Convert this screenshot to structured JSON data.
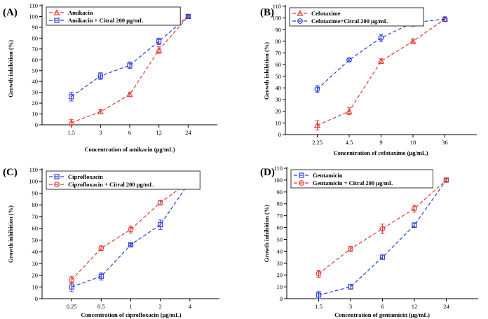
{
  "figure": {
    "colors": {
      "red": "#e03c31",
      "blue": "#2e3fd6",
      "axis": "#000000"
    },
    "ylabel": "Growth inhibition (%)"
  },
  "chart_data": [
    {
      "panel": "(A)",
      "type": "line",
      "categories": [
        "1.5",
        "3",
        "6",
        "12",
        "24"
      ],
      "xlabel": "Concentration of amikacin (μg/mL)",
      "ylabel": "Growth inhibition (%)",
      "ylim": [
        0,
        110
      ],
      "yticks": [
        0,
        10,
        20,
        30,
        40,
        50,
        60,
        70,
        80,
        90,
        100,
        110
      ],
      "legend_position": "top-left",
      "series": [
        {
          "name": "Amikacin",
          "color": "red",
          "marker": "triangle",
          "values": [
            2,
            12,
            28,
            69,
            100
          ],
          "errors": [
            3,
            2,
            2,
            3,
            1
          ]
        },
        {
          "name": "Amikacin + Citral 200 μg/mL",
          "color": "blue",
          "marker": "square",
          "values": [
            26,
            45,
            55,
            77,
            100
          ],
          "errors": [
            4,
            3,
            3,
            3,
            1
          ]
        }
      ]
    },
    {
      "panel": "(B)",
      "type": "line",
      "categories": [
        "2.25",
        "4.5",
        "9",
        "18",
        "36"
      ],
      "xlabel": "Concentration of cefotaxime (μg/mL)",
      "ylabel": "Growth inhibition (%)",
      "ylim": [
        0,
        110
      ],
      "yticks": [
        0,
        10,
        20,
        30,
        40,
        50,
        60,
        70,
        80,
        90,
        100,
        110
      ],
      "legend_position": "top-left",
      "series": [
        {
          "name": "Cefotaxime",
          "color": "red",
          "marker": "triangle",
          "values": [
            8,
            20,
            63,
            80,
            99
          ],
          "errors": [
            4,
            3,
            2,
            2,
            2
          ]
        },
        {
          "name": "Cefotaxime+Citral 200 μg/mL",
          "color": "blue",
          "marker": "circle",
          "values": [
            39,
            64,
            83,
            96,
            99
          ],
          "errors": [
            3,
            1,
            3,
            3,
            2
          ]
        }
      ]
    },
    {
      "panel": "(C)",
      "type": "line",
      "categories": [
        "0.25",
        "0.5",
        "1",
        "2",
        "4"
      ],
      "xlabel": "Concentration of ciprofloxacin (μg/mL)",
      "ylabel": "Growth inhibition (%)",
      "ylim": [
        0,
        110
      ],
      "yticks": [
        0,
        10,
        20,
        30,
        40,
        50,
        60,
        70,
        80,
        90,
        100,
        110
      ],
      "legend_position": "top-left",
      "series": [
        {
          "name": "Ciprofloxacin",
          "color": "blue",
          "marker": "square",
          "values": [
            10,
            19,
            46,
            63,
            100
          ],
          "errors": [
            4,
            3,
            1,
            4,
            1
          ]
        },
        {
          "name": "Ciprofloxacin + Citral 200 μg/mL",
          "color": "red",
          "marker": "circle",
          "values": [
            16,
            43,
            59,
            82,
            100
          ],
          "errors": [
            3,
            2,
            3,
            2,
            1
          ]
        }
      ]
    },
    {
      "panel": "(D)",
      "type": "line",
      "categories": [
        "1.5",
        "3",
        "6",
        "12",
        "24"
      ],
      "xlabel": "Concentration of gentamicin (μg/mL)",
      "ylabel": "Growth inhibition (%)",
      "ylim": [
        0,
        110
      ],
      "yticks": [
        0,
        10,
        20,
        30,
        40,
        50,
        60,
        70,
        80,
        90,
        100,
        110
      ],
      "legend_position": "top-left",
      "series": [
        {
          "name": "Gentamicin",
          "color": "blue",
          "marker": "square",
          "values": [
            3,
            10,
            35,
            62,
            100
          ],
          "errors": [
            3,
            2,
            2,
            2,
            1
          ]
        },
        {
          "name": "Gentamicin + Citral 200 μg/mL",
          "color": "red",
          "marker": "circle",
          "values": [
            21,
            42,
            59,
            76,
            100
          ],
          "errors": [
            3,
            2,
            4,
            3,
            1
          ]
        }
      ]
    }
  ]
}
